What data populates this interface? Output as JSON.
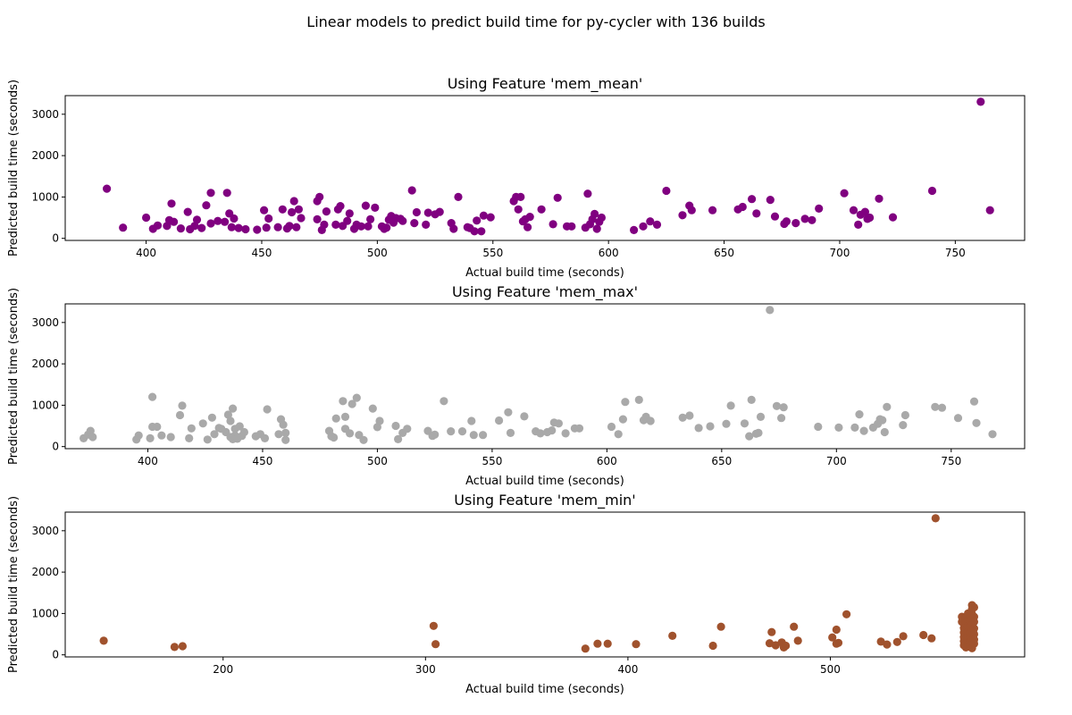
{
  "figure": {
    "suptitle": "Linear models to predict build time for py-cycler with 136 builds"
  },
  "chart_data": [
    {
      "type": "scatter",
      "title": "Using Feature 'mem_mean'",
      "xlabel": "Actual build time (seconds)",
      "ylabel": "Predicted build time (seconds)",
      "color": "#800080",
      "xlim": [
        365,
        780
      ],
      "ylim": [
        -50,
        3450
      ],
      "xticks": [
        400,
        450,
        500,
        550,
        600,
        650,
        700,
        750
      ],
      "yticks": [
        0,
        1000,
        2000,
        3000
      ],
      "points": [
        [
          383,
          1200
        ],
        [
          390,
          260
        ],
        [
          400,
          500
        ],
        [
          403,
          230
        ],
        [
          405,
          310
        ],
        [
          409,
          300
        ],
        [
          410,
          440
        ],
        [
          411,
          840
        ],
        [
          412,
          400
        ],
        [
          415,
          240
        ],
        [
          418,
          640
        ],
        [
          419,
          220
        ],
        [
          421,
          300
        ],
        [
          422,
          450
        ],
        [
          424,
          250
        ],
        [
          426,
          800
        ],
        [
          428,
          1100
        ],
        [
          428,
          360
        ],
        [
          431,
          420
        ],
        [
          434,
          400
        ],
        [
          435,
          1100
        ],
        [
          436,
          600
        ],
        [
          437,
          270
        ],
        [
          438,
          480
        ],
        [
          440,
          250
        ],
        [
          443,
          220
        ],
        [
          448,
          210
        ],
        [
          451,
          680
        ],
        [
          452,
          260
        ],
        [
          453,
          480
        ],
        [
          457,
          270
        ],
        [
          459,
          700
        ],
        [
          461,
          240
        ],
        [
          462,
          300
        ],
        [
          463,
          630
        ],
        [
          464,
          900
        ],
        [
          465,
          270
        ],
        [
          466,
          700
        ],
        [
          467,
          490
        ],
        [
          474,
          900
        ],
        [
          474,
          460
        ],
        [
          475,
          1000
        ],
        [
          476,
          200
        ],
        [
          477,
          330
        ],
        [
          478,
          650
        ],
        [
          482,
          330
        ],
        [
          483,
          700
        ],
        [
          484,
          780
        ],
        [
          485,
          300
        ],
        [
          487,
          420
        ],
        [
          488,
          600
        ],
        [
          490,
          230
        ],
        [
          491,
          330
        ],
        [
          493,
          290
        ],
        [
          495,
          790
        ],
        [
          496,
          290
        ],
        [
          497,
          460
        ],
        [
          499,
          740
        ],
        [
          502,
          290
        ],
        [
          503,
          230
        ],
        [
          504,
          260
        ],
        [
          505,
          450
        ],
        [
          506,
          540
        ],
        [
          507,
          380
        ],
        [
          508,
          490
        ],
        [
          510,
          470
        ],
        [
          511,
          420
        ],
        [
          515,
          1160
        ],
        [
          516,
          370
        ],
        [
          517,
          630
        ],
        [
          521,
          330
        ],
        [
          522,
          620
        ],
        [
          525,
          580
        ],
        [
          527,
          640
        ],
        [
          532,
          370
        ],
        [
          533,
          230
        ],
        [
          535,
          1000
        ],
        [
          539,
          270
        ],
        [
          540,
          250
        ],
        [
          542,
          170
        ],
        [
          543,
          430
        ],
        [
          545,
          170
        ],
        [
          546,
          550
        ],
        [
          549,
          510
        ],
        [
          559,
          900
        ],
        [
          560,
          1000
        ],
        [
          561,
          700
        ],
        [
          562,
          1000
        ],
        [
          563,
          410
        ],
        [
          564,
          460
        ],
        [
          565,
          270
        ],
        [
          566,
          520
        ],
        [
          571,
          700
        ],
        [
          576,
          340
        ],
        [
          578,
          980
        ],
        [
          582,
          290
        ],
        [
          584,
          290
        ],
        [
          590,
          260
        ],
        [
          591,
          1080
        ],
        [
          592,
          340
        ],
        [
          593,
          460
        ],
        [
          594,
          590
        ],
        [
          595,
          230
        ],
        [
          596,
          400
        ],
        [
          597,
          500
        ],
        [
          611,
          200
        ],
        [
          615,
          290
        ],
        [
          618,
          410
        ],
        [
          621,
          330
        ],
        [
          625,
          1150
        ],
        [
          632,
          560
        ],
        [
          635,
          790
        ],
        [
          636,
          680
        ],
        [
          645,
          680
        ],
        [
          656,
          700
        ],
        [
          658,
          760
        ],
        [
          662,
          950
        ],
        [
          664,
          600
        ],
        [
          670,
          930
        ],
        [
          672,
          530
        ],
        [
          676,
          350
        ],
        [
          677,
          410
        ],
        [
          681,
          370
        ],
        [
          685,
          470
        ],
        [
          688,
          440
        ],
        [
          691,
          720
        ],
        [
          702,
          1090
        ],
        [
          706,
          680
        ],
        [
          708,
          330
        ],
        [
          709,
          570
        ],
        [
          711,
          640
        ],
        [
          712,
          470
        ],
        [
          713,
          500
        ],
        [
          717,
          960
        ],
        [
          723,
          510
        ],
        [
          740,
          1150
        ],
        [
          761,
          3300
        ],
        [
          765,
          680
        ]
      ]
    },
    {
      "type": "scatter",
      "title": "Using Feature 'mem_max'",
      "xlabel": "Actual build time (seconds)",
      "ylabel": "Predicted build time (seconds)",
      "color": "#a9a9a9",
      "xlim": [
        364,
        782
      ],
      "ylim": [
        -50,
        3450
      ],
      "xticks": [
        400,
        450,
        500,
        550,
        600,
        650,
        700,
        750
      ],
      "yticks": [
        0,
        1000,
        2000,
        3000
      ],
      "points": [
        [
          372,
          200
        ],
        [
          374,
          290
        ],
        [
          375,
          380
        ],
        [
          376,
          230
        ],
        [
          395,
          170
        ],
        [
          396,
          270
        ],
        [
          401,
          200
        ],
        [
          402,
          1200
        ],
        [
          402,
          480
        ],
        [
          404,
          480
        ],
        [
          406,
          270
        ],
        [
          410,
          230
        ],
        [
          414,
          760
        ],
        [
          415,
          990
        ],
        [
          418,
          200
        ],
        [
          419,
          440
        ],
        [
          424,
          560
        ],
        [
          426,
          170
        ],
        [
          428,
          700
        ],
        [
          429,
          300
        ],
        [
          431,
          450
        ],
        [
          432,
          430
        ],
        [
          434,
          350
        ],
        [
          435,
          770
        ],
        [
          436,
          230
        ],
        [
          436,
          620
        ],
        [
          437,
          180
        ],
        [
          437,
          920
        ],
        [
          438,
          430
        ],
        [
          438,
          270
        ],
        [
          439,
          190
        ],
        [
          440,
          490
        ],
        [
          441,
          260
        ],
        [
          442,
          350
        ],
        [
          447,
          250
        ],
        [
          449,
          300
        ],
        [
          451,
          200
        ],
        [
          452,
          900
        ],
        [
          457,
          300
        ],
        [
          458,
          660
        ],
        [
          459,
          530
        ],
        [
          460,
          160
        ],
        [
          460,
          330
        ],
        [
          479,
          380
        ],
        [
          480,
          250
        ],
        [
          481,
          220
        ],
        [
          482,
          680
        ],
        [
          485,
          1100
        ],
        [
          486,
          430
        ],
        [
          486,
          720
        ],
        [
          488,
          320
        ],
        [
          489,
          1030
        ],
        [
          491,
          1180
        ],
        [
          492,
          280
        ],
        [
          494,
          160
        ],
        [
          498,
          920
        ],
        [
          500,
          470
        ],
        [
          501,
          620
        ],
        [
          508,
          500
        ],
        [
          509,
          180
        ],
        [
          511,
          330
        ],
        [
          513,
          430
        ],
        [
          522,
          380
        ],
        [
          524,
          260
        ],
        [
          525,
          290
        ],
        [
          529,
          1100
        ],
        [
          532,
          370
        ],
        [
          537,
          370
        ],
        [
          541,
          620
        ],
        [
          542,
          280
        ],
        [
          546,
          280
        ],
        [
          553,
          630
        ],
        [
          557,
          830
        ],
        [
          558,
          330
        ],
        [
          564,
          730
        ],
        [
          569,
          370
        ],
        [
          571,
          320
        ],
        [
          574,
          350
        ],
        [
          576,
          390
        ],
        [
          577,
          580
        ],
        [
          579,
          560
        ],
        [
          582,
          320
        ],
        [
          586,
          440
        ],
        [
          588,
          440
        ],
        [
          602,
          480
        ],
        [
          605,
          300
        ],
        [
          607,
          660
        ],
        [
          608,
          1080
        ],
        [
          614,
          1130
        ],
        [
          616,
          640
        ],
        [
          617,
          720
        ],
        [
          619,
          620
        ],
        [
          633,
          700
        ],
        [
          636,
          750
        ],
        [
          640,
          450
        ],
        [
          645,
          490
        ],
        [
          652,
          550
        ],
        [
          654,
          990
        ],
        [
          660,
          560
        ],
        [
          662,
          250
        ],
        [
          663,
          1130
        ],
        [
          665,
          310
        ],
        [
          666,
          330
        ],
        [
          667,
          720
        ],
        [
          671,
          3300
        ],
        [
          674,
          980
        ],
        [
          676,
          690
        ],
        [
          677,
          950
        ],
        [
          692,
          480
        ],
        [
          701,
          460
        ],
        [
          708,
          460
        ],
        [
          710,
          780
        ],
        [
          712,
          380
        ],
        [
          716,
          460
        ],
        [
          718,
          550
        ],
        [
          719,
          660
        ],
        [
          720,
          640
        ],
        [
          721,
          350
        ],
        [
          722,
          960
        ],
        [
          729,
          520
        ],
        [
          730,
          760
        ],
        [
          743,
          960
        ],
        [
          746,
          940
        ],
        [
          753,
          690
        ],
        [
          760,
          1090
        ],
        [
          761,
          570
        ],
        [
          768,
          300
        ]
      ]
    },
    {
      "type": "scatter",
      "title": "Using Feature 'mem_min'",
      "xlabel": "Actual build time (seconds)",
      "ylabel": "Predicted build time (seconds)",
      "color": "#a0522d",
      "xlim": [
        122,
        596
      ],
      "ylim": [
        -50,
        3450
      ],
      "xticks": [
        200,
        300,
        400,
        500
      ],
      "yticks": [
        0,
        1000,
        2000,
        3000
      ],
      "points": [
        [
          141,
          340
        ],
        [
          176,
          190
        ],
        [
          180,
          210
        ],
        [
          304,
          700
        ],
        [
          305,
          260
        ],
        [
          379,
          150
        ],
        [
          385,
          270
        ],
        [
          390,
          270
        ],
        [
          404,
          260
        ],
        [
          422,
          460
        ],
        [
          442,
          220
        ],
        [
          446,
          680
        ],
        [
          470,
          280
        ],
        [
          471,
          550
        ],
        [
          473,
          230
        ],
        [
          476,
          300
        ],
        [
          477,
          180
        ],
        [
          478,
          220
        ],
        [
          482,
          680
        ],
        [
          484,
          340
        ],
        [
          501,
          420
        ],
        [
          503,
          270
        ],
        [
          503,
          610
        ],
        [
          504,
          290
        ],
        [
          508,
          980
        ],
        [
          525,
          320
        ],
        [
          528,
          250
        ],
        [
          533,
          310
        ],
        [
          536,
          450
        ],
        [
          546,
          480
        ],
        [
          550,
          400
        ],
        [
          552,
          3300
        ],
        [
          565,
          920
        ],
        [
          565,
          800
        ],
        [
          566,
          650
        ],
        [
          566,
          540
        ],
        [
          566,
          430
        ],
        [
          566,
          330
        ],
        [
          566,
          230
        ],
        [
          567,
          900
        ],
        [
          567,
          760
        ],
        [
          567,
          620
        ],
        [
          567,
          480
        ],
        [
          567,
          380
        ],
        [
          567,
          280
        ],
        [
          567,
          180
        ],
        [
          568,
          1000
        ],
        [
          568,
          840
        ],
        [
          568,
          700
        ],
        [
          568,
          560
        ],
        [
          568,
          440
        ],
        [
          568,
          340
        ],
        [
          568,
          240
        ],
        [
          569,
          950
        ],
        [
          569,
          820
        ],
        [
          569,
          680
        ],
        [
          569,
          520
        ],
        [
          569,
          400
        ],
        [
          569,
          300
        ],
        [
          569,
          200
        ],
        [
          570,
          1200
        ],
        [
          570,
          1100
        ],
        [
          570,
          980
        ],
        [
          570,
          860
        ],
        [
          570,
          720
        ],
        [
          570,
          600
        ],
        [
          570,
          470
        ],
        [
          570,
          360
        ],
        [
          570,
          260
        ],
        [
          570,
          160
        ],
        [
          571,
          1150
        ],
        [
          571,
          920
        ],
        [
          571,
          800
        ],
        [
          571,
          640
        ],
        [
          571,
          500
        ],
        [
          571,
          370
        ],
        [
          571,
          270
        ]
      ]
    }
  ]
}
